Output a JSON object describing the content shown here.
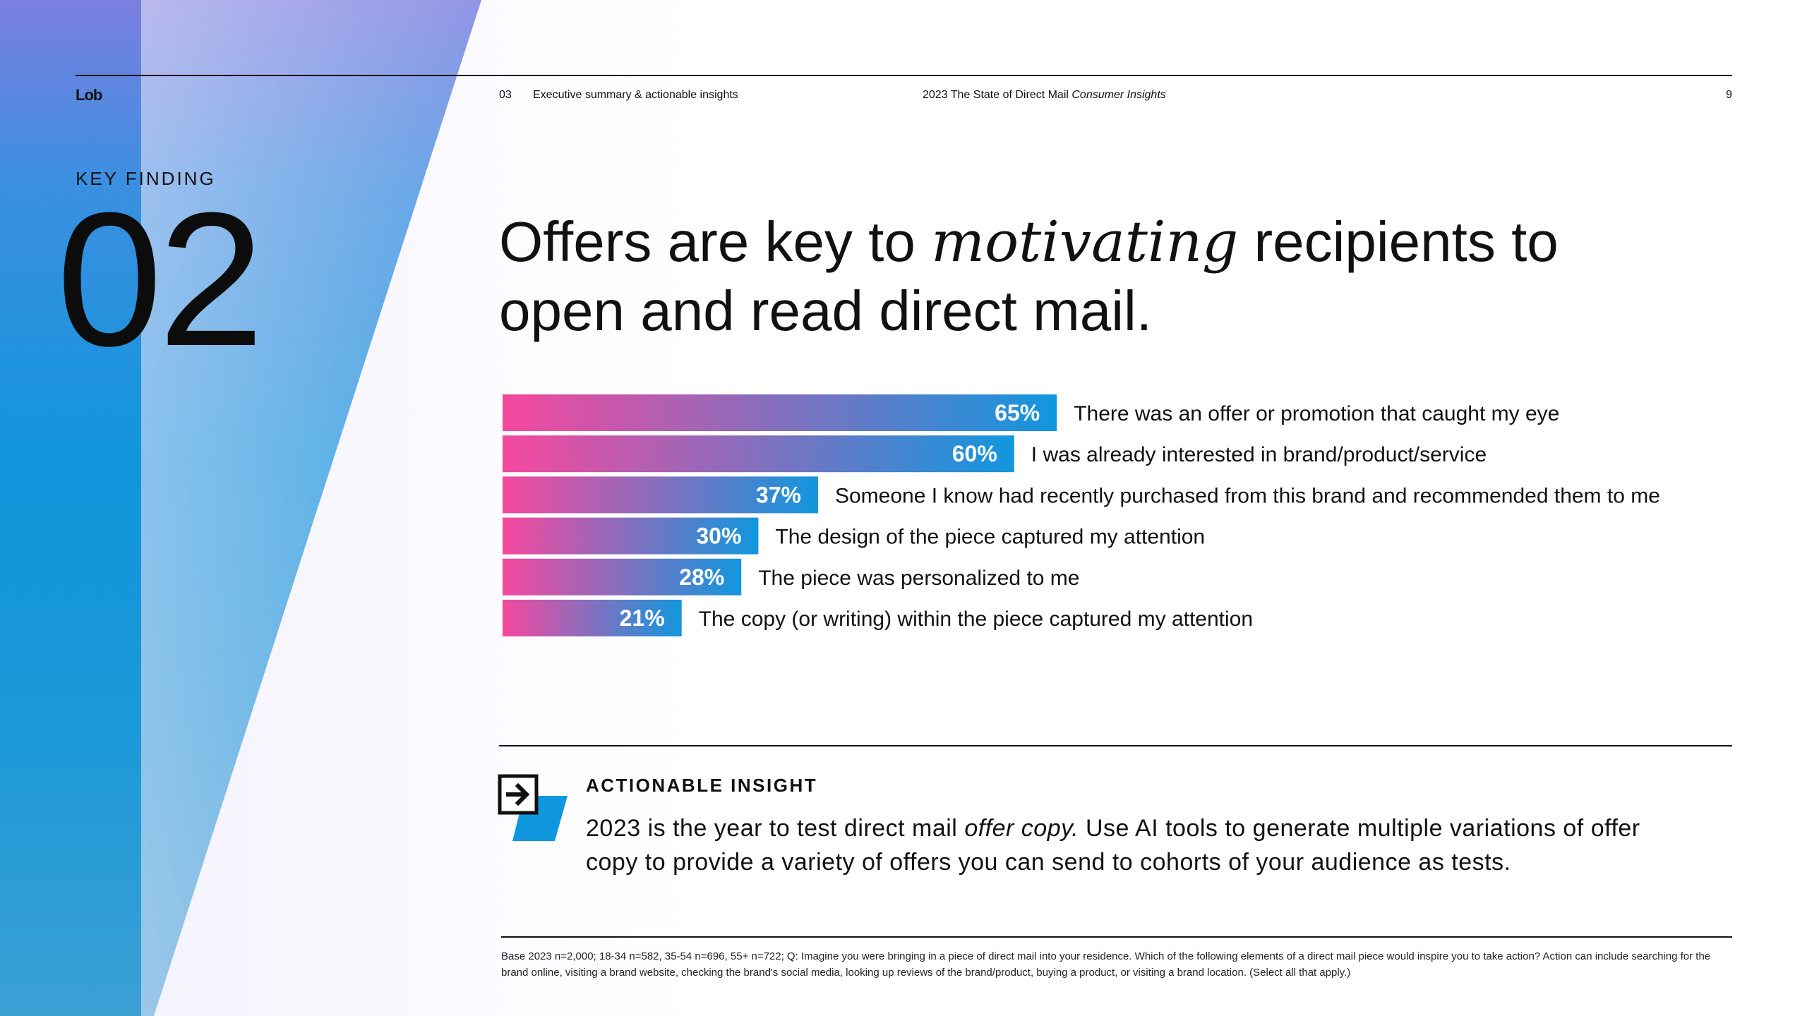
{
  "header": {
    "logo": "Lob",
    "section_number": "03",
    "section_title": "Executive summary & actionable insights",
    "report_title_main": "2023 The State of Direct Mail ",
    "report_title_italic": "Consumer Insights",
    "page_number": "9"
  },
  "key_finding": {
    "label": "KEY FINDING",
    "number": "02"
  },
  "headline": {
    "part1": "Offers are key to ",
    "emphasis": "motivating",
    "part2": " recipients to open and read direct mail."
  },
  "colors": {
    "bar_start": "#f5489e",
    "bar_end": "#1197de",
    "panel_blue": "#1295dc",
    "text": "#111111"
  },
  "chart_data": {
    "type": "bar",
    "orientation": "horizontal",
    "categories": [
      "There was an offer or promotion that caught my eye",
      "I was already interested in brand/product/service",
      "Someone I know had recently purchased from this brand and recommended them to me",
      "The design of the piece captured my attention",
      "The piece was personalized to me",
      "The copy (or writing) within the piece captured my attention"
    ],
    "values": [
      65,
      60,
      37,
      30,
      28,
      21
    ],
    "value_labels": [
      "65%",
      "60%",
      "37%",
      "30%",
      "28%",
      "21%"
    ],
    "unit": "%",
    "xlim": [
      0,
      100
    ]
  },
  "insight": {
    "label": "ACTIONABLE INSIGHT",
    "text_part1": "2023 is the year to test direct mail ",
    "text_italic": "offer copy.",
    "text_part2": " Use AI tools to generate multiple variations of offer copy to provide a variety of offers you can send to cohorts of your audience as tests.",
    "icon": "arrow-right-box-icon"
  },
  "footnote": "Base 2023 n=2,000; 18-34 n=582, 35-54 n=696, 55+ n=722; Q: Imagine you were bringing in a piece of direct mail into your residence. Which of the following elements of a direct mail piece would inspire you to take action? Action can include searching for the brand online, visiting a brand website, checking the brand's social media, looking up reviews of the brand/product, buying a product, or visiting a brand location. (Select all that apply.)"
}
